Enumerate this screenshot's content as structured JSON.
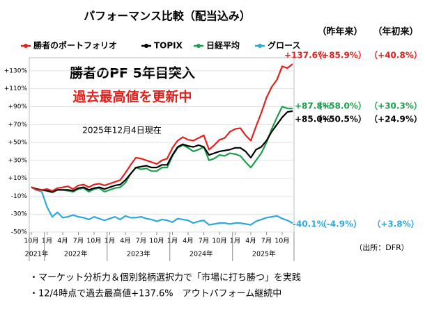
{
  "chart_data": {
    "type": "line",
    "title": "パフォーマンス比較（配当込み）",
    "column_headers": [
      "（昨年来）",
      "（年初来）"
    ],
    "annotations": [
      "勝者のPF 5年目突入",
      "過去最高値を更新中",
      "2025年12月4日現在"
    ],
    "source": "（出所：DFR）",
    "bullets": [
      "・マーケット分析力＆個別銘柄選択力で「市場に打ち勝つ」を実践",
      "・12/4時点で過去最高値+137.6%　アウトパフォーム継続中"
    ],
    "x": [
      "2021-10",
      "2021-11",
      "2021-12",
      "2022-01",
      "2022-02",
      "2022-03",
      "2022-04",
      "2022-05",
      "2022-06",
      "2022-07",
      "2022-08",
      "2022-09",
      "2022-10",
      "2022-11",
      "2022-12",
      "2023-01",
      "2023-02",
      "2023-03",
      "2023-04",
      "2023-05",
      "2023-06",
      "2023-07",
      "2023-08",
      "2023-09",
      "2023-10",
      "2023-11",
      "2023-12",
      "2024-01",
      "2024-02",
      "2024-03",
      "2024-04",
      "2024-05",
      "2024-06",
      "2024-07",
      "2024-08",
      "2024-09",
      "2024-10",
      "2024-11",
      "2024-12",
      "2025-01",
      "2025-02",
      "2025-03",
      "2025-04",
      "2025-05",
      "2025-06",
      "2025-07",
      "2025-08",
      "2025-09",
      "2025-10",
      "2025-11",
      "2025-12"
    ],
    "xticks": [
      {
        "value": "2021-10",
        "label": "10月"
      },
      {
        "value": "2022-01",
        "label": "1月"
      },
      {
        "value": "2022-04",
        "label": "4月"
      },
      {
        "value": "2022-07",
        "label": "7月"
      },
      {
        "value": "2022-10",
        "label": "10月"
      },
      {
        "value": "2023-01",
        "label": "1月"
      },
      {
        "value": "2023-04",
        "label": "4月"
      },
      {
        "value": "2023-07",
        "label": "7月"
      },
      {
        "value": "2023-10",
        "label": "10月"
      },
      {
        "value": "2024-01",
        "label": "1月"
      },
      {
        "value": "2024-04",
        "label": "4月"
      },
      {
        "value": "2024-07",
        "label": "7月"
      },
      {
        "value": "2024-10",
        "label": "10月"
      },
      {
        "value": "2025-01",
        "label": "1月"
      },
      {
        "value": "2025-04",
        "label": "4月"
      },
      {
        "value": "2025-07",
        "label": "7月"
      },
      {
        "value": "2025-10",
        "label": "10月"
      }
    ],
    "year_labels": [
      "2021年",
      "2022年",
      "2023年",
      "2024年",
      "2025年"
    ],
    "ylim": [
      -50,
      140
    ],
    "yticks": [
      {
        "value": 130,
        "label": "+130%"
      },
      {
        "value": 110,
        "label": "+110%"
      },
      {
        "value": 90,
        "label": "+90%"
      },
      {
        "value": 70,
        "label": "+70%"
      },
      {
        "value": 50,
        "label": "+50%"
      },
      {
        "value": 30,
        "label": "+30%"
      },
      {
        "value": 10,
        "label": "+10%"
      },
      {
        "value": -10,
        "label": "-10%"
      },
      {
        "value": -30,
        "label": "-30%"
      },
      {
        "value": -50,
        "label": "-50%"
      }
    ],
    "grid": true,
    "series": [
      {
        "name": "勝者のポートフォリオ",
        "color": "#e3201b",
        "end_label": "+137.6%",
        "last_year": "（+85.9%）",
        "ytd": "（+40.8%）",
        "values": [
          0,
          -3,
          -3,
          -2,
          -4,
          -1,
          0,
          1,
          -2,
          2,
          3,
          0,
          3,
          4,
          2,
          4,
          6,
          8,
          16,
          25,
          33,
          32,
          30,
          28,
          26,
          30,
          32,
          44,
          52,
          56,
          53,
          52,
          55,
          58,
          42,
          47,
          53,
          55,
          62,
          65,
          66,
          58,
          52,
          68,
          83,
          100,
          112,
          120,
          135,
          133,
          137.6
        ]
      },
      {
        "name": "TOPIX",
        "color": "#000000",
        "end_label": "+85.0%",
        "last_year": "（+50.5%）",
        "ytd": "（+24.9%）",
        "values": [
          0,
          -2,
          -3,
          -4,
          -5,
          -3,
          -3,
          -3,
          -4,
          -1,
          0,
          -3,
          -1,
          0,
          -2,
          0,
          2,
          3,
          8,
          15,
          22,
          23,
          24,
          22,
          22,
          25,
          25,
          36,
          45,
          48,
          46,
          45,
          47,
          45,
          36,
          38,
          40,
          41,
          42,
          44,
          44,
          40,
          33,
          42,
          45,
          52,
          62,
          70,
          78,
          84,
          85.0
        ]
      },
      {
        "name": "日経平均",
        "color": "#1a9e4b",
        "end_label": "+87.8%",
        "last_year": "（+58.0%）",
        "ytd": "（+30.3%）",
        "values": [
          0,
          -2,
          -3,
          -4,
          -6,
          -3,
          -3,
          -4,
          -5,
          -2,
          -1,
          -5,
          -2,
          -1,
          -5,
          -3,
          -1,
          0,
          5,
          15,
          22,
          20,
          21,
          18,
          18,
          22,
          22,
          35,
          44,
          47,
          44,
          40,
          42,
          45,
          30,
          32,
          36,
          35,
          38,
          37,
          35,
          28,
          22,
          30,
          38,
          50,
          65,
          78,
          90,
          88,
          87.8
        ]
      },
      {
        "name": "グロース",
        "color": "#2ea8dc",
        "end_label": "-40.1%",
        "last_year": "（-4.9%）",
        "ytd": "（+3.8%）",
        "values": [
          0,
          -3,
          -5,
          -22,
          -33,
          -28,
          -34,
          -33,
          -31,
          -33,
          -34,
          -36,
          -33,
          -35,
          -37,
          -35,
          -33,
          -36,
          -32,
          -34,
          -34,
          -33,
          -35,
          -36,
          -38,
          -36,
          -37,
          -39,
          -35,
          -36,
          -37,
          -40,
          -38,
          -37,
          -42,
          -41,
          -40,
          -40,
          -41,
          -40,
          -40,
          -41,
          -42,
          -38,
          -36,
          -34,
          -33,
          -32,
          -35,
          -37,
          -40.1
        ]
      }
    ]
  }
}
